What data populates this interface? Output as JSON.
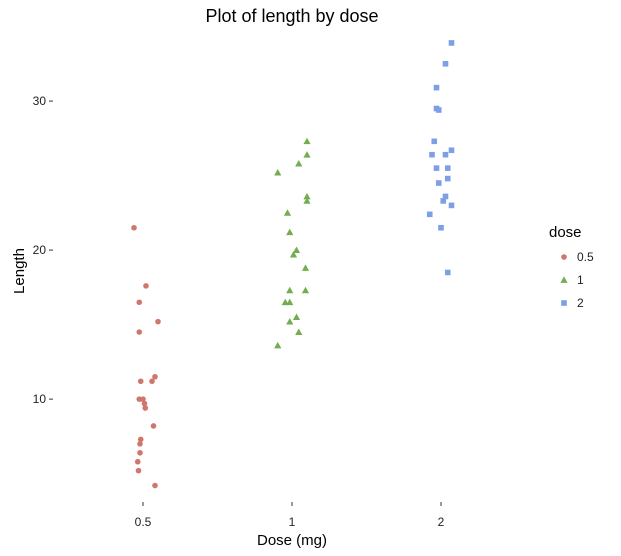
{
  "chart_data": {
    "type": "scatter",
    "title": "Plot of length  by dose",
    "xlabel": "Dose (mg)",
    "ylabel": "Length",
    "categories": [
      "0.5",
      "1",
      "2"
    ],
    "yticks": [
      10,
      20,
      30
    ],
    "ylim": [
      3.5,
      34.5
    ],
    "grid": false,
    "legend": {
      "title": "dose",
      "position": "right",
      "entries": [
        "0.5",
        "1",
        "2"
      ]
    },
    "series": [
      {
        "name": "0.5",
        "color": "#d1766c",
        "marker": "circle",
        "points": [
          {
            "x": 0.5,
            "jitter": -0.12,
            "y": 21.5
          },
          {
            "x": 0.5,
            "jitter": 0.04,
            "y": 17.6
          },
          {
            "x": 0.5,
            "jitter": -0.05,
            "y": 16.5
          },
          {
            "x": 0.5,
            "jitter": 0.2,
            "y": 15.2
          },
          {
            "x": 0.5,
            "jitter": -0.05,
            "y": 14.5
          },
          {
            "x": 0.5,
            "jitter": 0.16,
            "y": 11.5
          },
          {
            "x": 0.5,
            "jitter": -0.03,
            "y": 11.2
          },
          {
            "x": 0.5,
            "jitter": 0.12,
            "y": 11.2
          },
          {
            "x": 0.5,
            "jitter": -0.05,
            "y": 10.0
          },
          {
            "x": 0.5,
            "jitter": 0.0,
            "y": 10.0
          },
          {
            "x": 0.5,
            "jitter": 0.02,
            "y": 9.7
          },
          {
            "x": 0.5,
            "jitter": 0.03,
            "y": 9.4
          },
          {
            "x": 0.5,
            "jitter": 0.14,
            "y": 8.2
          },
          {
            "x": 0.5,
            "jitter": -0.03,
            "y": 7.3
          },
          {
            "x": 0.5,
            "jitter": -0.04,
            "y": 7.0
          },
          {
            "x": 0.5,
            "jitter": -0.04,
            "y": 6.4
          },
          {
            "x": 0.5,
            "jitter": -0.07,
            "y": 5.8
          },
          {
            "x": 0.5,
            "jitter": -0.06,
            "y": 5.2
          },
          {
            "x": 0.5,
            "jitter": 0.16,
            "y": 4.2
          }
        ]
      },
      {
        "name": "1",
        "color": "#74ad50",
        "marker": "triangle",
        "points": [
          {
            "x": 1,
            "jitter": 0.2,
            "y": 27.3
          },
          {
            "x": 1,
            "jitter": 0.2,
            "y": 26.4
          },
          {
            "x": 1,
            "jitter": 0.09,
            "y": 25.8
          },
          {
            "x": 1,
            "jitter": -0.19,
            "y": 25.2
          },
          {
            "x": 1,
            "jitter": 0.2,
            "y": 23.6
          },
          {
            "x": 1,
            "jitter": 0.2,
            "y": 23.3
          },
          {
            "x": 1,
            "jitter": -0.06,
            "y": 22.5
          },
          {
            "x": 1,
            "jitter": -0.03,
            "y": 21.2
          },
          {
            "x": 1,
            "jitter": 0.06,
            "y": 20.0
          },
          {
            "x": 1,
            "jitter": 0.02,
            "y": 19.7
          },
          {
            "x": 1,
            "jitter": 0.18,
            "y": 18.8
          },
          {
            "x": 1,
            "jitter": -0.03,
            "y": 17.3
          },
          {
            "x": 1,
            "jitter": 0.18,
            "y": 17.3
          },
          {
            "x": 1,
            "jitter": -0.09,
            "y": 16.5
          },
          {
            "x": 1,
            "jitter": -0.03,
            "y": 16.5
          },
          {
            "x": 1,
            "jitter": 0.06,
            "y": 15.5
          },
          {
            "x": 1,
            "jitter": -0.03,
            "y": 15.2
          },
          {
            "x": 1,
            "jitter": 0.09,
            "y": 14.5
          },
          {
            "x": 1,
            "jitter": -0.19,
            "y": 13.6
          }
        ]
      },
      {
        "name": "2",
        "color": "#7c9fe6",
        "marker": "square",
        "points": [
          {
            "x": 2,
            "jitter": 0.14,
            "y": 33.9
          },
          {
            "x": 2,
            "jitter": 0.06,
            "y": 32.5
          },
          {
            "x": 2,
            "jitter": -0.06,
            "y": 30.9
          },
          {
            "x": 2,
            "jitter": -0.06,
            "y": 29.5
          },
          {
            "x": 2,
            "jitter": -0.03,
            "y": 29.4
          },
          {
            "x": 2,
            "jitter": -0.09,
            "y": 27.3
          },
          {
            "x": 2,
            "jitter": 0.14,
            "y": 26.7
          },
          {
            "x": 2,
            "jitter": -0.12,
            "y": 26.4
          },
          {
            "x": 2,
            "jitter": 0.06,
            "y": 26.4
          },
          {
            "x": 2,
            "jitter": -0.06,
            "y": 25.5
          },
          {
            "x": 2,
            "jitter": 0.09,
            "y": 25.5
          },
          {
            "x": 2,
            "jitter": 0.09,
            "y": 24.8
          },
          {
            "x": 2,
            "jitter": -0.03,
            "y": 24.5
          },
          {
            "x": 2,
            "jitter": 0.06,
            "y": 23.6
          },
          {
            "x": 2,
            "jitter": 0.03,
            "y": 23.3
          },
          {
            "x": 2,
            "jitter": 0.14,
            "y": 23.0
          },
          {
            "x": 2,
            "jitter": -0.15,
            "y": 22.4
          },
          {
            "x": 2,
            "jitter": 0.0,
            "y": 21.5
          },
          {
            "x": 2,
            "jitter": 0.09,
            "y": 18.5
          }
        ]
      }
    ]
  }
}
